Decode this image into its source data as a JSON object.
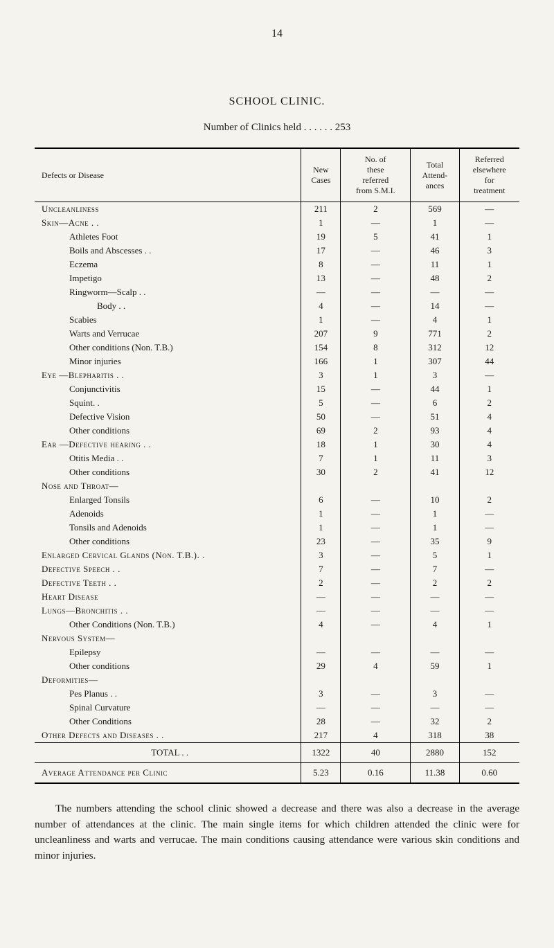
{
  "page_number": "14",
  "title": "SCHOOL CLINIC.",
  "subtitle_prefix": "Number of Clinics held",
  "subtitle_dots": ". .      . .      . .",
  "subtitle_value": "253",
  "headers": {
    "disease": "Defects or Disease",
    "new_cases": "New\nCases",
    "referred": "No. of\nthese\nreferred\nfrom S.M.I.",
    "attendances": "Total\nAttend-\nances",
    "elsewhere": "Referred\nelsewhere\nfor\ntreatment"
  },
  "rows": [
    {
      "label": "Uncleanliness",
      "class": "section-label",
      "indent": 0,
      "c1": "211",
      "c2": "2",
      "c3": "569",
      "c4": "—"
    },
    {
      "label": "Skin—Acne . .",
      "class": "section-label",
      "indent": 0,
      "c1": "1",
      "c2": "—",
      "c3": "1",
      "c4": "—"
    },
    {
      "label": "Athletes Foot",
      "indent": 1,
      "c1": "19",
      "c2": "5",
      "c3": "41",
      "c4": "1"
    },
    {
      "label": "Boils and Abscesses . .",
      "indent": 1,
      "c1": "17",
      "c2": "—",
      "c3": "46",
      "c4": "3"
    },
    {
      "label": "Eczema",
      "indent": 1,
      "c1": "8",
      "c2": "—",
      "c3": "11",
      "c4": "1"
    },
    {
      "label": "Impetigo",
      "indent": 1,
      "c1": "13",
      "c2": "—",
      "c3": "48",
      "c4": "2"
    },
    {
      "label": "Ringworm—Scalp . .",
      "indent": 1,
      "c1": "—",
      "c2": "—",
      "c3": "—",
      "c4": "—"
    },
    {
      "label": "Body . .",
      "indent": 2,
      "c1": "4",
      "c2": "—",
      "c3": "14",
      "c4": "—"
    },
    {
      "label": "Scabies",
      "indent": 1,
      "c1": "1",
      "c2": "—",
      "c3": "4",
      "c4": "1"
    },
    {
      "label": "Warts and Verrucae",
      "indent": 1,
      "c1": "207",
      "c2": "9",
      "c3": "771",
      "c4": "2"
    },
    {
      "label": "Other conditions (Non. T.B.)",
      "indent": 1,
      "c1": "154",
      "c2": "8",
      "c3": "312",
      "c4": "12"
    },
    {
      "label": "Minor injuries",
      "indent": 1,
      "c1": "166",
      "c2": "1",
      "c3": "307",
      "c4": "44"
    },
    {
      "label": "Eye —Blepharitis . .",
      "class": "section-label",
      "indent": 0,
      "c1": "3",
      "c2": "1",
      "c3": "3",
      "c4": "—"
    },
    {
      "label": "Conjunctivitis",
      "indent": 1,
      "c1": "15",
      "c2": "—",
      "c3": "44",
      "c4": "1"
    },
    {
      "label": "Squint. .",
      "indent": 1,
      "c1": "5",
      "c2": "—",
      "c3": "6",
      "c4": "2"
    },
    {
      "label": "Defective Vision",
      "indent": 1,
      "c1": "50",
      "c2": "—",
      "c3": "51",
      "c4": "4"
    },
    {
      "label": "Other conditions",
      "indent": 1,
      "c1": "69",
      "c2": "2",
      "c3": "93",
      "c4": "4"
    },
    {
      "label": "Ear —Defective hearing . .",
      "class": "section-label",
      "indent": 0,
      "c1": "18",
      "c2": "1",
      "c3": "30",
      "c4": "4"
    },
    {
      "label": "Otitis Media . .",
      "indent": 1,
      "c1": "7",
      "c2": "1",
      "c3": "11",
      "c4": "3"
    },
    {
      "label": "Other conditions",
      "indent": 1,
      "c1": "30",
      "c2": "2",
      "c3": "41",
      "c4": "12"
    },
    {
      "label": "Nose and Throat—",
      "class": "section-label",
      "indent": 0,
      "c1": "",
      "c2": "",
      "c3": "",
      "c4": ""
    },
    {
      "label": "Enlarged Tonsils",
      "indent": 1,
      "c1": "6",
      "c2": "—",
      "c3": "10",
      "c4": "2"
    },
    {
      "label": "Adenoids",
      "indent": 1,
      "c1": "1",
      "c2": "—",
      "c3": "1",
      "c4": "—"
    },
    {
      "label": "Tonsils and Adenoids",
      "indent": 1,
      "c1": "1",
      "c2": "—",
      "c3": "1",
      "c4": "—"
    },
    {
      "label": "Other conditions",
      "indent": 1,
      "c1": "23",
      "c2": "—",
      "c3": "35",
      "c4": "9"
    },
    {
      "label": "Enlarged Cervical Glands (Non. T.B.). .",
      "class": "section-label",
      "indent": 0,
      "c1": "3",
      "c2": "—",
      "c3": "5",
      "c4": "1"
    },
    {
      "label": "Defective Speech . .",
      "class": "section-label",
      "indent": 0,
      "c1": "7",
      "c2": "—",
      "c3": "7",
      "c4": "—"
    },
    {
      "label": "Defective Teeth . .",
      "class": "section-label",
      "indent": 0,
      "c1": "2",
      "c2": "—",
      "c3": "2",
      "c4": "2"
    },
    {
      "label": "Heart Disease",
      "class": "section-label",
      "indent": 0,
      "c1": "—",
      "c2": "—",
      "c3": "—",
      "c4": "—"
    },
    {
      "label": "Lungs—Bronchitis . .",
      "class": "section-label",
      "indent": 0,
      "c1": "—",
      "c2": "—",
      "c3": "—",
      "c4": "—"
    },
    {
      "label": "Other Conditions (Non. T.B.)",
      "indent": 1,
      "c1": "4",
      "c2": "—",
      "c3": "4",
      "c4": "1"
    },
    {
      "label": "Nervous System—",
      "class": "section-label",
      "indent": 0,
      "c1": "",
      "c2": "",
      "c3": "",
      "c4": ""
    },
    {
      "label": "Epilepsy",
      "indent": 1,
      "c1": "—",
      "c2": "—",
      "c3": "—",
      "c4": "—"
    },
    {
      "label": "Other conditions",
      "indent": 1,
      "c1": "29",
      "c2": "4",
      "c3": "59",
      "c4": "1"
    },
    {
      "label": "Deformities—",
      "class": "section-label",
      "indent": 0,
      "c1": "",
      "c2": "",
      "c3": "",
      "c4": ""
    },
    {
      "label": "Pes Planus . .",
      "indent": 1,
      "c1": "3",
      "c2": "—",
      "c3": "3",
      "c4": "—"
    },
    {
      "label": "Spinal Curvature",
      "indent": 1,
      "c1": "—",
      "c2": "—",
      "c3": "—",
      "c4": "—"
    },
    {
      "label": "Other Conditions",
      "indent": 1,
      "c1": "28",
      "c2": "—",
      "c3": "32",
      "c4": "2"
    },
    {
      "label": "Other Defects and Diseases . .",
      "class": "section-label",
      "indent": 0,
      "c1": "217",
      "c2": "4",
      "c3": "318",
      "c4": "38"
    }
  ],
  "total": {
    "label": "TOTAL . .",
    "c1": "1322",
    "c2": "40",
    "c3": "2880",
    "c4": "152"
  },
  "average": {
    "label": "Average Attendance per Clinic",
    "c1": "5.23",
    "c2": "0.16",
    "c3": "11.38",
    "c4": "0.60"
  },
  "paragraph": "The numbers attending the school clinic showed a decrease and there was also a decrease in the average number of attendances at the clinic. The main single items for which children attended the clinic were for uncleanliness and warts and verrucae. The main conditions causing attendance were various skin conditions and minor injuries."
}
